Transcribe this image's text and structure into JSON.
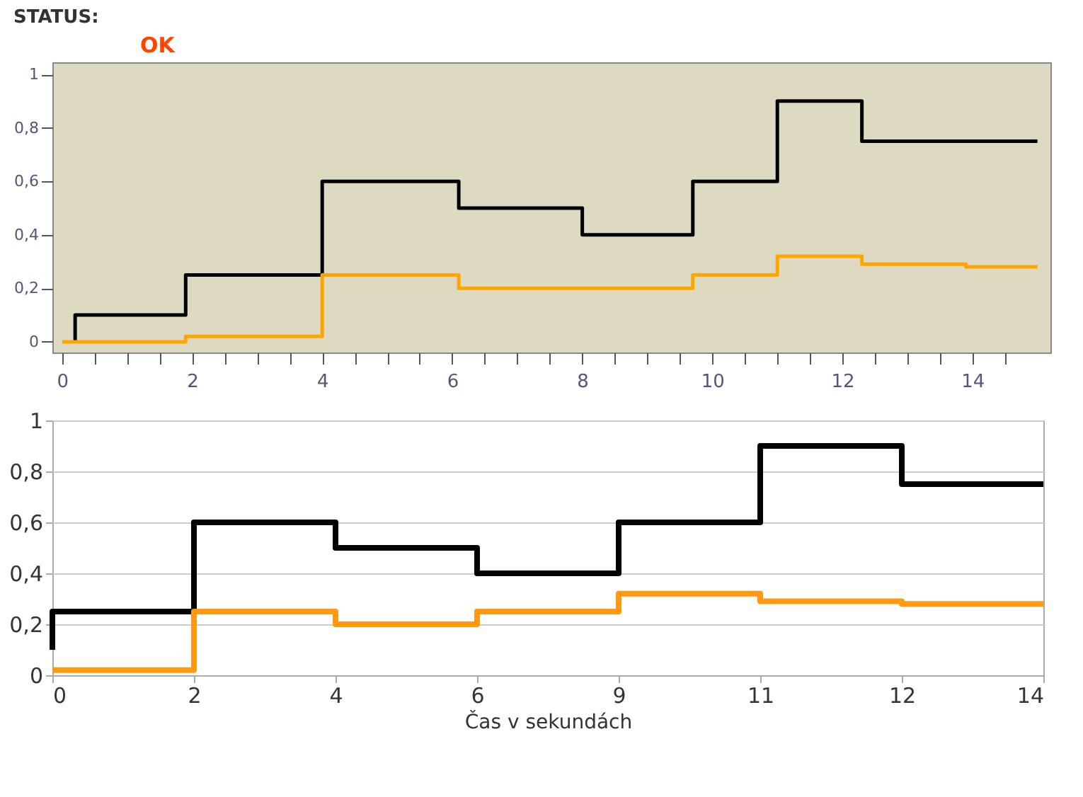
{
  "chart_data": [
    {
      "type": "step",
      "title": "STATUS:",
      "annotations": [
        "OK"
      ],
      "xlim": [
        -0.15,
        15.2
      ],
      "xticks": [
        0,
        {
          "value": 0.5,
          "label": null
        },
        {
          "value": 1,
          "label": null
        },
        {
          "value": 1.5,
          "label": null
        },
        2,
        {
          "value": 2.5,
          "label": null
        },
        {
          "value": 3,
          "label": null
        },
        {
          "value": 3.5,
          "label": null
        },
        4,
        {
          "value": 4.5,
          "label": null
        },
        {
          "value": 5,
          "label": null
        },
        {
          "value": 5.5,
          "label": null
        },
        6,
        {
          "value": 6.5,
          "label": null
        },
        {
          "value": 7,
          "label": null
        },
        {
          "value": 7.5,
          "label": null
        },
        8,
        {
          "value": 8.5,
          "label": null
        },
        {
          "value": 9,
          "label": null
        },
        {
          "value": 9.5,
          "label": null
        },
        10,
        {
          "value": 10.5,
          "label": null
        },
        {
          "value": 11,
          "label": null
        },
        {
          "value": 11.5,
          "label": null
        },
        12,
        {
          "value": 12.5,
          "label": null
        },
        {
          "value": 13,
          "label": null
        },
        {
          "value": 13.5,
          "label": null
        },
        14,
        {
          "value": 14.5,
          "label": null
        }
      ],
      "ylim": [
        -0.04,
        1.045
      ],
      "yticks": [
        0,
        {
          "value": 0.2,
          "label": "0,2"
        },
        {
          "value": 0.4,
          "label": "0,4"
        },
        {
          "value": 0.6,
          "label": "0,6"
        },
        {
          "value": 0.8,
          "label": "0,8"
        },
        1
      ],
      "grid": false,
      "series": [
        {
          "color": "#000000",
          "x": [
            0.2,
            1.9,
            4,
            6.1,
            8,
            9.7,
            11,
            12.3,
            15
          ],
          "values": [
            0,
            0.1,
            0.25,
            0.6,
            0.5,
            0.4,
            0.6,
            0.9,
            0.75
          ]
        },
        {
          "color": "#ffa500",
          "x": [
            0,
            1.9,
            4,
            6.1,
            9.7,
            11,
            12.3,
            13.9,
            15
          ],
          "values": [
            0,
            0,
            0.02,
            0.25,
            0.2,
            0.25,
            0.32,
            0.29,
            0.28
          ]
        }
      ]
    },
    {
      "type": "step",
      "xlabel": "Čas v sekundách",
      "categories": [
        "0",
        "2",
        "4",
        "6",
        "9",
        "11",
        "12",
        "14"
      ],
      "ylim": [
        0,
        1
      ],
      "yticks": [
        0,
        {
          "value": 0.2,
          "label": "0,2"
        },
        {
          "value": 0.4,
          "label": "0,4"
        },
        {
          "value": 0.6,
          "label": "0,6"
        },
        {
          "value": 0.8,
          "label": "0,8"
        },
        1
      ],
      "grid": "y",
      "series": [
        {
          "color": "#000000",
          "values": [
            0.1,
            0.25,
            0.6,
            0.5,
            0.4,
            0.6,
            0.9,
            0.75
          ]
        },
        {
          "color": "#ff9912",
          "values": [
            0.02,
            0.02,
            0.25,
            0.2,
            0.25,
            0.32,
            0.29,
            0.28
          ]
        }
      ]
    }
  ]
}
